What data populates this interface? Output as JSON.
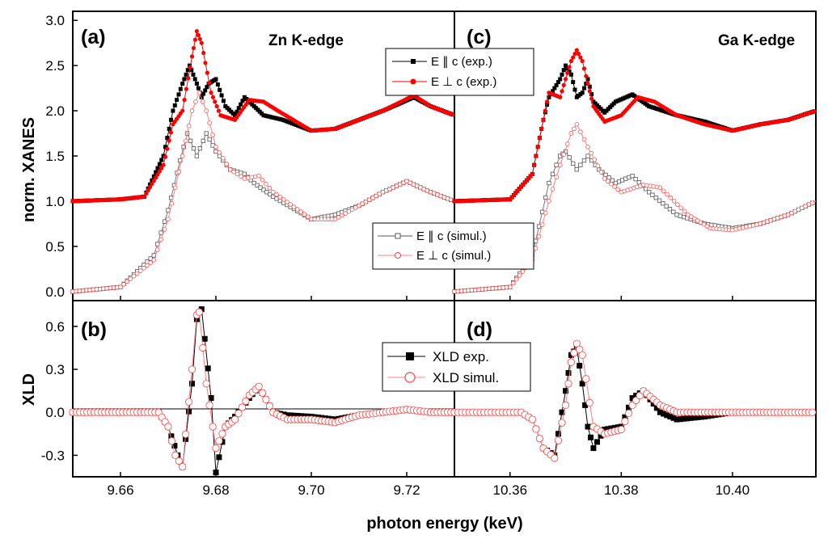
{
  "colors": {
    "black": "#000000",
    "red": "#ff0000",
    "gray": "#555555",
    "pink": "#ff8080"
  },
  "chart_data": [
    {
      "panel": "a",
      "type": "scatter",
      "edge": "Zn K-edge",
      "xlim": [
        9.65,
        9.73
      ],
      "ylim": [
        -0.1,
        3.1
      ],
      "xticks": [
        "9.66",
        "9.68",
        "9.70",
        "9.72"
      ],
      "xtick_values": [
        9.66,
        9.68,
        9.7,
        9.72
      ],
      "yticks": [
        "0.0",
        "0.5",
        "1.0",
        "1.5",
        "2.0",
        "2.5",
        "3.0"
      ],
      "ytick_values": [
        0,
        0.5,
        1,
        1.5,
        2,
        2.5,
        3
      ],
      "ylabel": "norm. XANES",
      "series": [
        {
          "name": "E ∥ c (exp.)",
          "style": "exp-par",
          "x": [
            9.65,
            9.66,
            9.665,
            9.669,
            9.671,
            9.673,
            9.6745,
            9.676,
            9.677,
            9.6785,
            9.68,
            9.682,
            9.684,
            9.686,
            9.688,
            9.69,
            9.694,
            9.7,
            9.705,
            9.71,
            9.715,
            9.7215,
            9.725,
            9.73
          ],
          "y": [
            1.0,
            1.02,
            1.05,
            1.5,
            2.0,
            2.3,
            2.5,
            2.3,
            2.15,
            2.3,
            2.35,
            2.05,
            1.95,
            2.15,
            2.05,
            1.95,
            1.9,
            1.78,
            1.8,
            1.9,
            2.0,
            2.15,
            2.05,
            1.95
          ]
        },
        {
          "name": "E ⊥ c (exp.)",
          "style": "exp-perp",
          "x": [
            9.65,
            9.66,
            9.665,
            9.669,
            9.671,
            9.673,
            9.675,
            9.676,
            9.677,
            9.679,
            9.681,
            9.684,
            9.687,
            9.69,
            9.693,
            9.7,
            9.705,
            9.71,
            9.715,
            9.7215,
            9.725,
            9.73
          ],
          "y": [
            1.0,
            1.02,
            1.05,
            1.4,
            1.85,
            2.0,
            2.6,
            2.88,
            2.75,
            2.2,
            1.95,
            1.9,
            2.12,
            2.1,
            2.0,
            1.78,
            1.8,
            1.9,
            2.0,
            2.17,
            2.05,
            1.95
          ]
        },
        {
          "name": "E ∥ c (simul.)",
          "style": "sim-par",
          "x": [
            9.65,
            9.66,
            9.667,
            9.67,
            9.6725,
            9.674,
            9.676,
            9.678,
            9.68,
            9.683,
            9.686,
            9.688,
            9.692,
            9.7,
            9.705,
            9.71,
            9.715,
            9.72,
            9.725,
            9.73
          ],
          "y": [
            0.0,
            0.05,
            0.4,
            0.9,
            1.45,
            1.75,
            1.5,
            1.75,
            1.55,
            1.35,
            1.3,
            1.2,
            1.05,
            0.8,
            0.85,
            0.95,
            1.1,
            1.22,
            1.1,
            1.0
          ]
        },
        {
          "name": "E ⊥ c (simul.)",
          "style": "sim-perp",
          "x": [
            9.65,
            9.66,
            9.667,
            9.67,
            9.673,
            9.675,
            9.6765,
            9.678,
            9.68,
            9.683,
            9.686,
            9.689,
            9.692,
            9.7,
            9.705,
            9.71,
            9.715,
            9.72,
            9.725,
            9.73
          ],
          "y": [
            0.0,
            0.05,
            0.35,
            0.8,
            1.5,
            2.0,
            2.2,
            2.0,
            1.6,
            1.35,
            1.25,
            1.28,
            1.1,
            0.8,
            0.8,
            0.95,
            1.1,
            1.22,
            1.1,
            1.0
          ]
        }
      ]
    },
    {
      "panel": "b",
      "type": "scatter",
      "xlim": [
        9.65,
        9.73
      ],
      "ylim": [
        -0.45,
        0.78
      ],
      "xticks": [
        "9.66",
        "9.68",
        "9.70",
        "9.72"
      ],
      "xtick_values": [
        9.66,
        9.68,
        9.7,
        9.72
      ],
      "yticks": [
        "-0.3",
        "0.0",
        "0.3",
        "0.6"
      ],
      "ytick_values": [
        -0.3,
        0,
        0.3,
        0.6
      ],
      "ylabel": "XLD",
      "series": [
        {
          "name": "XLD exp.",
          "style": "xld-exp",
          "x": [
            9.65,
            9.668,
            9.67,
            9.672,
            9.673,
            9.675,
            9.676,
            9.677,
            9.679,
            9.68,
            9.682,
            9.684,
            9.687,
            9.689,
            9.692,
            9.695,
            9.7,
            9.705,
            9.71,
            9.715,
            9.72,
            9.725,
            9.73
          ],
          "y": [
            0.0,
            0.0,
            -0.1,
            -0.3,
            -0.38,
            0.2,
            0.65,
            0.72,
            0.1,
            -0.42,
            -0.1,
            -0.03,
            0.1,
            0.18,
            0.0,
            -0.02,
            -0.03,
            -0.05,
            -0.02,
            0.0,
            0.02,
            0.0,
            0.0
          ]
        },
        {
          "name": "XLD simul.",
          "style": "xld-sim",
          "x": [
            9.65,
            9.668,
            9.67,
            9.6715,
            9.673,
            9.675,
            9.676,
            9.6765,
            9.678,
            9.68,
            9.682,
            9.684,
            9.687,
            9.689,
            9.692,
            9.695,
            9.7,
            9.705,
            9.71,
            9.715,
            9.72,
            9.725,
            9.73
          ],
          "y": [
            0.0,
            0.0,
            -0.1,
            -0.3,
            -0.38,
            0.3,
            0.68,
            0.7,
            0.2,
            -0.25,
            -0.1,
            -0.05,
            0.12,
            0.18,
            0.0,
            -0.05,
            -0.05,
            -0.07,
            -0.02,
            0.0,
            0.02,
            0.0,
            0.0
          ]
        }
      ]
    },
    {
      "panel": "c",
      "type": "scatter",
      "edge": "Ga K-edge",
      "xlim": [
        10.35,
        10.415
      ],
      "ylim": [
        -0.1,
        3.1
      ],
      "xticks": [
        "10.36",
        "10.38",
        "10.40"
      ],
      "xtick_values": [
        10.36,
        10.38,
        10.4
      ],
      "series": [
        {
          "name": "E ∥ c (exp.)",
          "style": "exp-par",
          "x": [
            10.35,
            10.36,
            10.364,
            10.366,
            10.367,
            10.369,
            10.37,
            10.371,
            10.372,
            10.373,
            10.374,
            10.375,
            10.377,
            10.379,
            10.382,
            10.385,
            10.39,
            10.395,
            10.4,
            10.405,
            10.41,
            10.415
          ],
          "y": [
            1.0,
            1.02,
            1.3,
            1.9,
            2.15,
            2.35,
            2.5,
            2.4,
            2.15,
            2.2,
            2.35,
            2.1,
            1.98,
            2.1,
            2.18,
            2.05,
            1.95,
            1.88,
            1.78,
            1.85,
            1.9,
            2.0
          ]
        },
        {
          "name": "E ⊥ c (exp.)",
          "style": "exp-perp",
          "x": [
            10.35,
            10.36,
            10.364,
            10.366,
            10.367,
            10.369,
            10.371,
            10.372,
            10.373,
            10.375,
            10.377,
            10.38,
            10.383,
            10.386,
            10.39,
            10.395,
            10.4,
            10.405,
            10.41,
            10.415
          ],
          "y": [
            1.0,
            1.02,
            1.3,
            1.9,
            2.2,
            2.15,
            2.55,
            2.67,
            2.55,
            2.05,
            1.88,
            1.95,
            2.15,
            2.1,
            1.95,
            1.85,
            1.78,
            1.85,
            1.9,
            2.0
          ]
        },
        {
          "name": "E ∥ c (simul.)",
          "style": "sim-par",
          "x": [
            10.35,
            10.36,
            10.364,
            10.367,
            10.369,
            10.37,
            10.372,
            10.374,
            10.376,
            10.379,
            10.382,
            10.385,
            10.39,
            10.395,
            10.4,
            10.405,
            10.41,
            10.415
          ],
          "y": [
            0.0,
            0.05,
            0.4,
            1.2,
            1.5,
            1.55,
            1.35,
            1.5,
            1.35,
            1.2,
            1.28,
            1.1,
            0.85,
            0.75,
            0.7,
            0.75,
            0.85,
            1.0
          ]
        },
        {
          "name": "E ⊥ c (simul.)",
          "style": "sim-perp",
          "x": [
            10.35,
            10.36,
            10.364,
            10.367,
            10.369,
            10.371,
            10.372,
            10.374,
            10.377,
            10.38,
            10.384,
            10.387,
            10.392,
            10.396,
            10.4,
            10.405,
            10.41,
            10.415
          ],
          "y": [
            0.0,
            0.05,
            0.35,
            1.0,
            1.4,
            1.75,
            1.85,
            1.6,
            1.25,
            1.1,
            1.18,
            1.15,
            0.85,
            0.7,
            0.68,
            0.75,
            0.85,
            1.0
          ]
        }
      ]
    },
    {
      "panel": "d",
      "type": "scatter",
      "xlim": [
        10.35,
        10.415
      ],
      "ylim": [
        -0.45,
        0.78
      ],
      "xticks": [
        "10.36",
        "10.38",
        "10.40"
      ],
      "xtick_values": [
        10.36,
        10.38,
        10.4
      ],
      "series": [
        {
          "name": "XLD exp.",
          "style": "xld-exp",
          "x": [
            10.35,
            10.362,
            10.364,
            10.366,
            10.368,
            10.37,
            10.371,
            10.372,
            10.373,
            10.374,
            10.375,
            10.377,
            10.38,
            10.382,
            10.384,
            10.387,
            10.39,
            10.395,
            10.4,
            10.405,
            10.41,
            10.415
          ],
          "y": [
            0.0,
            0.0,
            -0.05,
            -0.25,
            -0.3,
            0.15,
            0.4,
            0.45,
            0.2,
            -0.1,
            -0.25,
            -0.12,
            -0.1,
            0.1,
            0.15,
            0.0,
            -0.05,
            -0.03,
            0.0,
            0.0,
            0.0,
            0.0
          ]
        },
        {
          "name": "XLD simul.",
          "style": "xld-sim",
          "x": [
            10.35,
            10.362,
            10.364,
            10.366,
            10.368,
            10.37,
            10.371,
            10.372,
            10.373,
            10.375,
            10.377,
            10.38,
            10.382,
            10.384,
            10.387,
            10.39,
            10.395,
            10.4,
            10.405,
            10.41,
            10.415
          ],
          "y": [
            0.0,
            0.0,
            -0.05,
            -0.25,
            -0.32,
            0.05,
            0.35,
            0.48,
            0.4,
            -0.1,
            -0.15,
            -0.12,
            0.05,
            0.15,
            0.05,
            0.0,
            0.0,
            0.0,
            0.0,
            0.0,
            0.0
          ]
        }
      ]
    }
  ],
  "labels": {
    "panel_a": "(a)",
    "panel_b": "(b)",
    "panel_c": "(c)",
    "panel_d": "(d)",
    "zn_edge": "Zn K-edge",
    "ga_edge": "Ga K-edge",
    "ylabel_top": "norm. XANES",
    "ylabel_bottom": "XLD",
    "xlabel": "photon energy (keV)"
  },
  "legends": {
    "exp": [
      "E ∥ c (exp.)",
      "E ⊥ c (exp.)"
    ],
    "sim": [
      "E ∥ c (simul.)",
      "E ⊥ c (simul.)"
    ],
    "xld": [
      "XLD exp.",
      "XLD simul."
    ]
  }
}
